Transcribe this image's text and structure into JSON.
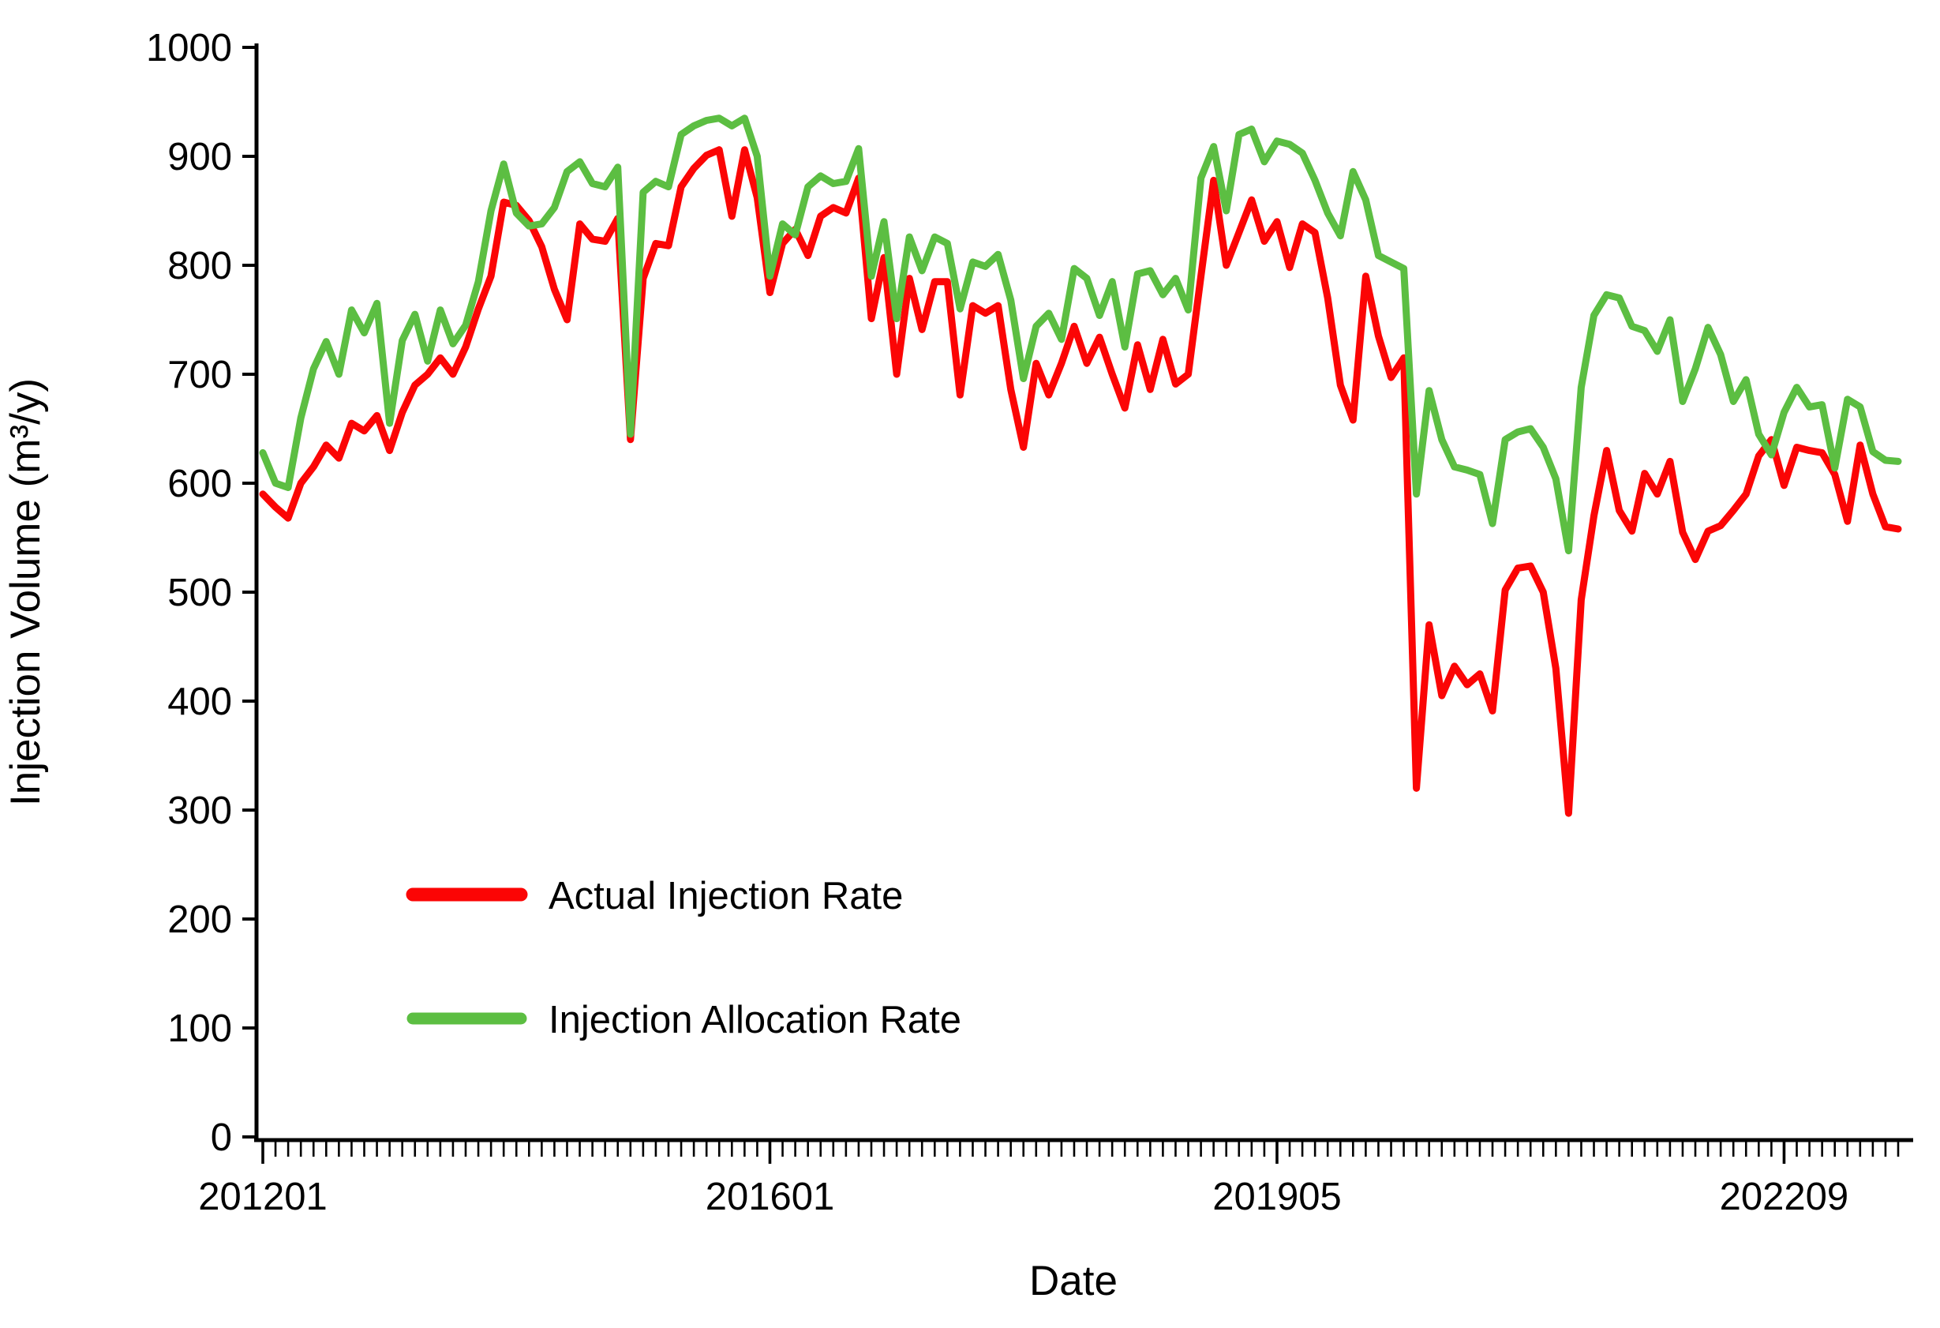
{
  "chart_data": {
    "type": "line",
    "title": "",
    "xlabel": "Date",
    "ylabel": "Injection Volume  (m³/y)",
    "ylim": [
      0,
      1000
    ],
    "yticks": [
      0,
      100,
      200,
      300,
      400,
      500,
      600,
      700,
      800,
      900,
      1000
    ],
    "x_count": 130,
    "xtick_positions": [
      0,
      40,
      80,
      120
    ],
    "xtick_labels": [
      "201201",
      "201601",
      "201905",
      "202209"
    ],
    "grid": false,
    "legend_position": "inside-lower-left",
    "axis_color": "#000000",
    "series": [
      {
        "name": "Actual Injection Rate",
        "color": "#fb0505",
        "values": [
          590,
          578,
          568,
          600,
          615,
          635,
          623,
          655,
          648,
          662,
          630,
          665,
          690,
          700,
          715,
          700,
          725,
          760,
          790,
          858,
          855,
          841,
          817,
          778,
          750,
          838,
          824,
          822,
          843,
          640,
          788,
          820,
          818,
          872,
          889,
          901,
          906,
          845,
          906,
          862,
          775,
          820,
          833,
          809,
          845,
          853,
          848,
          880,
          751,
          807,
          700,
          788,
          741,
          785,
          785,
          681,
          763,
          756,
          763,
          686,
          633,
          710,
          681,
          710,
          744,
          710,
          734,
          700,
          669,
          727,
          686,
          732,
          691,
          700,
          790,
          878,
          800,
          830,
          860,
          822,
          840,
          798,
          838,
          830,
          770,
          690,
          658,
          790,
          735,
          697,
          715,
          320,
          470,
          405,
          432,
          415,
          425,
          391,
          502,
          522,
          524,
          500,
          430,
          297,
          493,
          570,
          630,
          575,
          556,
          609,
          590,
          620,
          555,
          530,
          556,
          561,
          575,
          590,
          625,
          640,
          598,
          633,
          630,
          628,
          608,
          565,
          635,
          590,
          560,
          558
        ]
      },
      {
        "name": "Injection Allocation Rate",
        "color": "#5cbe42",
        "values": [
          628,
          600,
          596,
          660,
          705,
          730,
          700,
          759,
          738,
          765,
          655,
          731,
          755,
          712,
          759,
          728,
          745,
          785,
          850,
          893,
          848,
          836,
          838,
          853,
          886,
          895,
          875,
          872,
          890,
          645,
          867,
          877,
          872,
          920,
          928,
          933,
          935,
          928,
          935,
          900,
          790,
          838,
          828,
          872,
          882,
          875,
          877,
          907,
          790,
          840,
          751,
          826,
          795,
          826,
          820,
          760,
          803,
          799,
          810,
          768,
          696,
          744,
          756,
          732,
          797,
          788,
          754,
          785,
          725,
          792,
          795,
          773,
          788,
          759,
          880,
          909,
          850,
          920,
          925,
          895,
          914,
          911,
          903,
          878,
          848,
          827,
          886,
          860,
          809,
          803,
          797,
          590,
          685,
          640,
          615,
          612,
          608,
          563,
          640,
          647,
          650,
          633,
          604,
          538,
          688,
          754,
          773,
          770,
          744,
          740,
          721,
          750,
          675,
          705,
          743,
          718,
          675,
          695,
          645,
          626,
          665,
          688,
          670,
          672,
          614,
          677,
          670,
          629,
          621,
          620
        ]
      }
    ]
  },
  "legend": {
    "items": [
      {
        "label": "Actual Injection Rate",
        "color": "#fb0505"
      },
      {
        "label": "Injection Allocation Rate",
        "color": "#5cbe42"
      }
    ]
  }
}
